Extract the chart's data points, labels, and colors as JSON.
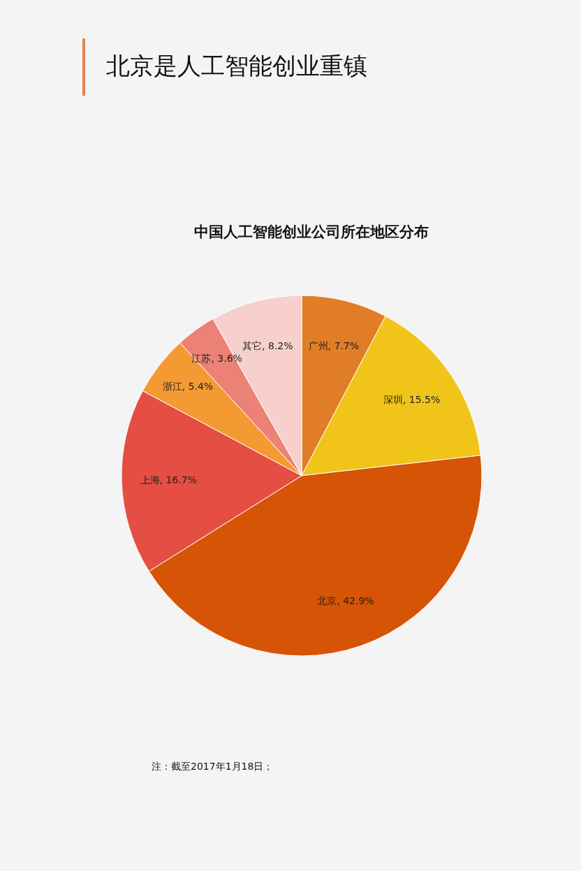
{
  "chart_data": {
    "type": "pie",
    "title": "北京是人工智能创业重镇",
    "subtitle": "中国人工智能创业公司所在地区分布",
    "categories": [
      "广州",
      "深圳",
      "北京",
      "上海",
      "浙江",
      "江苏",
      "其它"
    ],
    "values": [
      7.7,
      15.5,
      42.9,
      16.7,
      5.4,
      3.6,
      8.2
    ],
    "value_labels": [
      "7.7%",
      "15.5%",
      "42.9%",
      "16.7%",
      "5.4%",
      "3.6%",
      "8.2%"
    ],
    "colors": [
      "#e27d27",
      "#f0c419",
      "#d65405",
      "#e54e42",
      "#f39b32",
      "#ec8175",
      "#f7d0ce"
    ],
    "annotations": [
      "注：截至2017年1月18日；"
    ]
  }
}
